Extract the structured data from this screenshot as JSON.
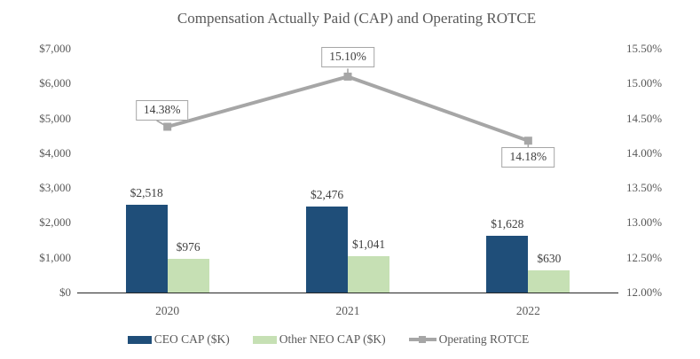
{
  "title": "Compensation Actually Paid (CAP) and Operating ROTCE",
  "chart_data": {
    "type": "bar",
    "subtype": "bar-and-line-dual-axis",
    "categories": [
      "2020",
      "2021",
      "2022"
    ],
    "series": [
      {
        "name": "CEO CAP ($K)",
        "type": "bar",
        "axis": "left",
        "color": "#1F4E79",
        "values": [
          2518,
          2476,
          1628
        ],
        "labels": [
          "$2,518",
          "$2,476",
          "$1,628"
        ]
      },
      {
        "name": "Other NEO CAP ($K)",
        "type": "bar",
        "axis": "left",
        "color": "#C6E0B4",
        "values": [
          976,
          1041,
          630
        ],
        "labels": [
          "$976",
          "$1,041",
          "$630"
        ]
      },
      {
        "name": "Operating ROTCE",
        "type": "line",
        "axis": "right",
        "color": "#A6A6A6",
        "values": [
          14.38,
          15.1,
          14.18
        ],
        "labels": [
          "14.38%",
          "15.10%",
          "14.18%"
        ],
        "label_positions": [
          "above-left",
          "above",
          "below"
        ]
      }
    ],
    "left_axis": {
      "min": 0,
      "max": 7000,
      "tick_step": 1000,
      "ticks": [
        "$0",
        "$1,000",
        "$2,000",
        "$3,000",
        "$4,000",
        "$5,000",
        "$6,000",
        "$7,000"
      ]
    },
    "right_axis": {
      "min": 12.0,
      "max": 15.5,
      "tick_step": 0.5,
      "ticks": [
        "12.00%",
        "12.50%",
        "13.00%",
        "13.50%",
        "14.00%",
        "14.50%",
        "15.00%",
        "15.50%"
      ]
    },
    "grid": false,
    "legend_position": "bottom"
  },
  "legend": {
    "items": [
      {
        "label": "CEO CAP ($K)",
        "swatch": "bar",
        "color": "#1F4E79"
      },
      {
        "label": "Other NEO CAP ($K)",
        "swatch": "bar",
        "color": "#C6E0B4"
      },
      {
        "label": "Operating ROTCE",
        "swatch": "line-marker",
        "color": "#A6A6A6"
      }
    ]
  },
  "colors": {
    "ceo_bar": "#1F4E79",
    "neo_bar": "#C6E0B4",
    "rotce_line": "#A6A6A6",
    "axis_text": "#595959",
    "data_label_text": "#404040",
    "axis_line": "#262626",
    "callout_border": "#A6A6A6",
    "background": "#FFFFFF"
  }
}
